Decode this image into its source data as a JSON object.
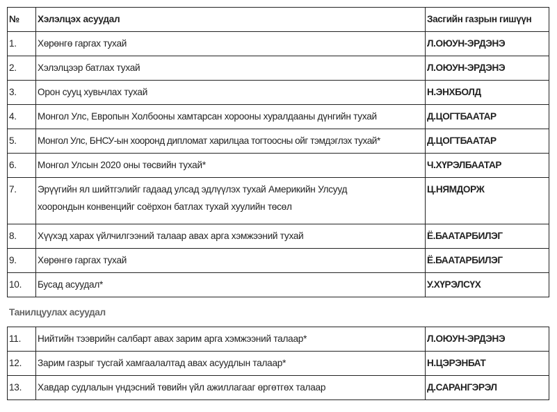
{
  "table1": {
    "headers": [
      "№",
      "Хэлэлцэх асуудал",
      "Засгийн газрын гишүүн"
    ],
    "rows": [
      {
        "num": "1.",
        "topic": "Хөрөнгө гаргах тухай",
        "member": "Л.ОЮУН-ЭРДЭНЭ"
      },
      {
        "num": "2.",
        "topic": "Хэлэлцээр батлах тухай",
        "member": "Л.ОЮУН-ЭРДЭНЭ"
      },
      {
        "num": "3.",
        "topic": "Орон сууц хувьчлах тухай",
        "member": "Н.ЭНХБОЛД"
      },
      {
        "num": "4.",
        "topic": "Монгол Улс, Европын Холбооны хамтарсан хорооны хуралдааны дүнгийн тухай",
        "member": "Д.ЦОГТБААТАР"
      },
      {
        "num": "5.",
        "topic": "Монгол Улс, БНСУ-ын хооронд дипломат харилцаа тогтоосны ойг тэмдэглэх тухай*",
        "member": "Д.ЦОГТБААТАР"
      },
      {
        "num": "6.",
        "topic": "Монгол Улсын 2020 оны төсвийн тухай*",
        "member": "Ч.ХҮРЭЛБААТАР"
      },
      {
        "num": "7.",
        "topic": "Эрүүгийн ял шийтгэлийг гадаад улсад эдлүүлэх тухай Америкийн Улсууд хоорондын конвенцийг соёрхон батлах тухай хуулийн төсөл",
        "member": "Ц.НЯМДОРЖ"
      },
      {
        "num": "8.",
        "topic": "Хүүхэд харах үйлчилгээний талаар авах арга хэмжээний тухай",
        "member": "Ё.БААТАРБИЛЭГ"
      },
      {
        "num": "9.",
        "topic": "Хөрөнгө гаргах тухай",
        "member": "Ё.БААТАРБИЛЭГ"
      },
      {
        "num": "10.",
        "topic": "Бусад асуудал*",
        "member": "У.ХҮРЭЛСҮХ"
      }
    ]
  },
  "section_title": "Танилцуулах асуудал",
  "table2": {
    "rows": [
      {
        "num": "11.",
        "topic": "Нийтийн тээврийн салбарт авах зарим арга хэмжээний талаар*",
        "member": "Л.ОЮУН-ЭРДЭНЭ"
      },
      {
        "num": "12.",
        "topic": "Зарим газрыг тусгай хамгаалалтад авах асуудлын талаар*",
        "member": "Н.ЦЭРЭНБАТ"
      },
      {
        "num": "13.",
        "topic": "Хавдар судлалын үндэсний төвийн үйл ажиллагааг өргөтгөх талаар",
        "member": "Д.САРАНГЭРЭЛ"
      }
    ]
  }
}
